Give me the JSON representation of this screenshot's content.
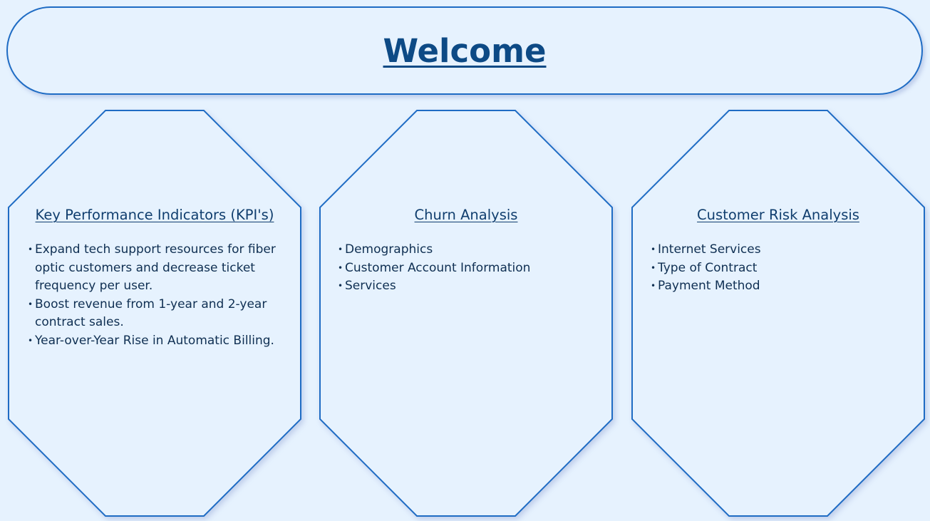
{
  "banner": {
    "title": "Welcome"
  },
  "panels": [
    {
      "title": "Key Performance Indicators (KPI's)",
      "items": [
        "Expand tech support resources for fiber optic customers and decrease ticket frequency per user.",
        "Boost revenue from 1-year and 2-year contract sales.",
        "Year-over-Year Rise in Automatic Billing."
      ]
    },
    {
      "title": "Churn Analysis",
      "items": [
        "Demographics",
        "Customer Account Information",
        "Services"
      ]
    },
    {
      "title": "Customer Risk Analysis",
      "items": [
        "Internet Services",
        "Type of Contract",
        "Payment Method"
      ]
    }
  ],
  "colors": {
    "background": "#e6f2fe",
    "border": "#1f6cc4",
    "title": "#0d4a85",
    "text": "#0f2f52"
  },
  "icons": {
    "bullet": "bullet-icon"
  }
}
